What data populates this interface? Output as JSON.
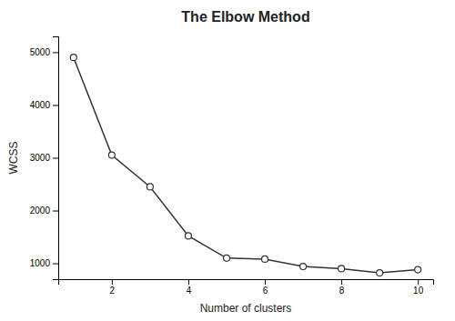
{
  "chart_data": {
    "type": "line",
    "title": "The Elbow Method",
    "xlabel": "Number of clusters",
    "ylabel": "WCSS",
    "x": [
      1,
      2,
      3,
      4,
      5,
      6,
      7,
      8,
      9,
      10
    ],
    "values": [
      4900,
      3050,
      2450,
      1520,
      1100,
      1080,
      940,
      900,
      820,
      880
    ],
    "color": "#333333",
    "marker": "circle",
    "xlim": [
      0.6,
      10.4
    ],
    "ylim": [
      700,
      5300
    ],
    "xticks": [
      2,
      4,
      6,
      8,
      10
    ],
    "yticks": [
      1000,
      2000,
      3000,
      4000,
      5000
    ],
    "grid": false
  }
}
